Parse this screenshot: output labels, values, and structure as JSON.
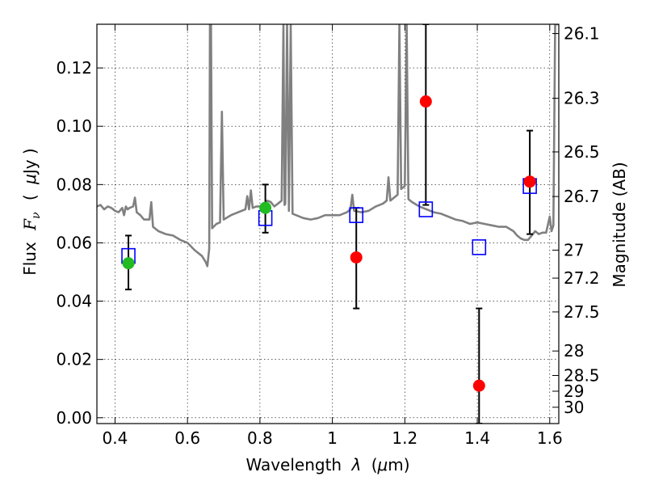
{
  "chart_data": {
    "type": "scatter",
    "title": "",
    "xlabel": "Wavelength",
    "xlabel_symbol": "λ",
    "xlabel_unit_open": "(",
    "xlabel_unit_mu": "μ",
    "xlabel_unit_rest": "m)",
    "ylabel": "Flux",
    "ylabel_symbol": "F",
    "ylabel_subscript": "ν",
    "ylabel_unit_open": "(",
    "ylabel_unit_mu": "μ",
    "ylabel_unit_rest": "Jy )",
    "y2label": "Magnitude (AB)",
    "xlim": [
      0.35,
      1.625
    ],
    "ylim": [
      -0.002,
      0.135
    ],
    "grid": true,
    "grid_style": "dotted",
    "x_ticks": [
      0.4,
      0.6,
      0.8,
      1.0,
      1.2,
      1.4,
      1.6
    ],
    "x_tick_labels": [
      "0.4",
      "0.6",
      "0.8",
      "1",
      "1.2",
      "1.4",
      "1.6"
    ],
    "y_ticks": [
      0.0,
      0.02,
      0.04,
      0.06,
      0.08,
      0.1,
      0.12
    ],
    "y_tick_labels": [
      "0.00",
      "0.02",
      "0.04",
      "0.06",
      "0.08",
      "0.10",
      "0.12"
    ],
    "y2_ticks": [
      {
        "label": "26.1",
        "flux": 0.1318
      },
      {
        "label": "26.3",
        "flux": 0.1096
      },
      {
        "label": "26.5",
        "flux": 0.0912
      },
      {
        "label": "26.7",
        "flux": 0.0759
      },
      {
        "label": "27",
        "flux": 0.0575
      },
      {
        "label": "27.2",
        "flux": 0.0479
      },
      {
        "label": "27.5",
        "flux": 0.0363
      },
      {
        "label": "28",
        "flux": 0.0229
      },
      {
        "label": "28.5",
        "flux": 0.0145
      },
      {
        "label": "29",
        "flux": 0.0091
      },
      {
        "label": "30",
        "flux": 0.0036
      }
    ],
    "colors": {
      "template": "#808080",
      "model": "#0000ff",
      "green": "#22bb22",
      "red": "#ff0000",
      "errorbar": "#000000"
    },
    "series": [
      {
        "style": "gray-line",
        "points": [
          [
            0.35,
            0.0725
          ],
          [
            0.36,
            0.073
          ],
          [
            0.37,
            0.0715
          ],
          [
            0.38,
            0.0725
          ],
          [
            0.39,
            0.072
          ],
          [
            0.4,
            0.071
          ],
          [
            0.41,
            0.0705
          ],
          [
            0.42,
            0.072
          ],
          [
            0.425,
            0.0695
          ],
          [
            0.43,
            0.0725
          ],
          [
            0.435,
            0.0715
          ],
          [
            0.44,
            0.072
          ],
          [
            0.45,
            0.0725
          ],
          [
            0.455,
            0.0755
          ],
          [
            0.46,
            0.0705
          ],
          [
            0.47,
            0.0695
          ],
          [
            0.48,
            0.068
          ],
          [
            0.49,
            0.068
          ],
          [
            0.495,
            0.068
          ],
          [
            0.5,
            0.074
          ],
          [
            0.505,
            0.0655
          ],
          [
            0.52,
            0.064
          ],
          [
            0.54,
            0.063
          ],
          [
            0.56,
            0.0625
          ],
          [
            0.58,
            0.061
          ],
          [
            0.6,
            0.06
          ],
          [
            0.62,
            0.0575
          ],
          [
            0.64,
            0.0555
          ],
          [
            0.65,
            0.0535
          ],
          [
            0.655,
            0.052
          ],
          [
            0.66,
            0.058
          ],
          [
            0.662,
            0.135
          ],
          [
            0.665,
            0.135
          ],
          [
            0.668,
            0.065
          ],
          [
            0.68,
            0.0665
          ],
          [
            0.69,
            0.067
          ],
          [
            0.695,
            0.105
          ],
          [
            0.7,
            0.068
          ],
          [
            0.72,
            0.0695
          ],
          [
            0.74,
            0.0705
          ],
          [
            0.76,
            0.0715
          ],
          [
            0.765,
            0.076
          ],
          [
            0.77,
            0.0715
          ],
          [
            0.775,
            0.078
          ],
          [
            0.78,
            0.072
          ],
          [
            0.79,
            0.0725
          ],
          [
            0.8,
            0.0725
          ],
          [
            0.81,
            0.073
          ],
          [
            0.82,
            0.0745
          ],
          [
            0.83,
            0.074
          ],
          [
            0.84,
            0.0725
          ],
          [
            0.85,
            0.0735
          ],
          [
            0.86,
            0.0745
          ],
          [
            0.865,
            0.135
          ],
          [
            0.868,
            0.073
          ],
          [
            0.87,
            0.0735
          ],
          [
            0.875,
            0.135
          ],
          [
            0.88,
            0.071
          ],
          [
            0.885,
            0.135
          ],
          [
            0.89,
            0.07
          ],
          [
            0.9,
            0.0695
          ],
          [
            0.92,
            0.0685
          ],
          [
            0.94,
            0.068
          ],
          [
            0.96,
            0.0685
          ],
          [
            0.98,
            0.0695
          ],
          [
            1.0,
            0.0695
          ],
          [
            1.02,
            0.0695
          ],
          [
            1.04,
            0.0705
          ],
          [
            1.05,
            0.0715
          ],
          [
            1.055,
            0.0765
          ],
          [
            1.06,
            0.071
          ],
          [
            1.08,
            0.0705
          ],
          [
            1.1,
            0.071
          ],
          [
            1.12,
            0.0725
          ],
          [
            1.14,
            0.0735
          ],
          [
            1.15,
            0.0745
          ],
          [
            1.155,
            0.0825
          ],
          [
            1.16,
            0.0745
          ],
          [
            1.18,
            0.0765
          ],
          [
            1.185,
            0.135
          ],
          [
            1.19,
            0.0785
          ],
          [
            1.2,
            0.0795
          ],
          [
            1.205,
            0.135
          ],
          [
            1.21,
            0.075
          ],
          [
            1.22,
            0.074
          ],
          [
            1.24,
            0.0725
          ],
          [
            1.26,
            0.0715
          ],
          [
            1.28,
            0.0705
          ],
          [
            1.3,
            0.07
          ],
          [
            1.32,
            0.069
          ],
          [
            1.34,
            0.068
          ],
          [
            1.36,
            0.0675
          ],
          [
            1.38,
            0.0665
          ],
          [
            1.4,
            0.067
          ],
          [
            1.42,
            0.0665
          ],
          [
            1.44,
            0.066
          ],
          [
            1.46,
            0.0655
          ],
          [
            1.48,
            0.0655
          ],
          [
            1.5,
            0.064
          ],
          [
            1.51,
            0.0625
          ],
          [
            1.52,
            0.0615
          ],
          [
            1.53,
            0.061
          ],
          [
            1.54,
            0.061
          ],
          [
            1.55,
            0.0625
          ],
          [
            1.56,
            0.064
          ],
          [
            1.57,
            0.063
          ],
          [
            1.58,
            0.0635
          ],
          [
            1.59,
            0.0635
          ],
          [
            1.6,
            0.069
          ],
          [
            1.605,
            0.064
          ],
          [
            1.61,
            0.066
          ],
          [
            1.615,
            0.135
          ],
          [
            1.625,
            0.135
          ]
        ]
      },
      {
        "style": "open-square",
        "points": [
          {
            "x": 0.437,
            "y": 0.0555
          },
          {
            "x": 0.815,
            "y": 0.0685
          },
          {
            "x": 1.066,
            "y": 0.0695
          },
          {
            "x": 1.258,
            "y": 0.0715
          },
          {
            "x": 1.405,
            "y": 0.0585
          },
          {
            "x": 1.545,
            "y": 0.0795
          }
        ]
      },
      {
        "style": "green-dot",
        "points": [
          {
            "x": 0.437,
            "y": 0.053,
            "err_low": 0.044,
            "err_high": 0.0625
          },
          {
            "x": 0.815,
            "y": 0.072,
            "err_low": 0.0635,
            "err_high": 0.08
          }
        ]
      },
      {
        "style": "red-dot",
        "points": [
          {
            "x": 1.066,
            "y": 0.055,
            "err_low": 0.0375,
            "err_high": 0.072
          },
          {
            "x": 1.258,
            "y": 0.1085,
            "err_low": 0.073,
            "err_high": 0.135
          },
          {
            "x": 1.405,
            "y": 0.011,
            "err_low": -0.002,
            "err_high": 0.0375
          },
          {
            "x": 1.545,
            "y": 0.081,
            "err_low": 0.063,
            "err_high": 0.0985
          }
        ]
      }
    ]
  }
}
